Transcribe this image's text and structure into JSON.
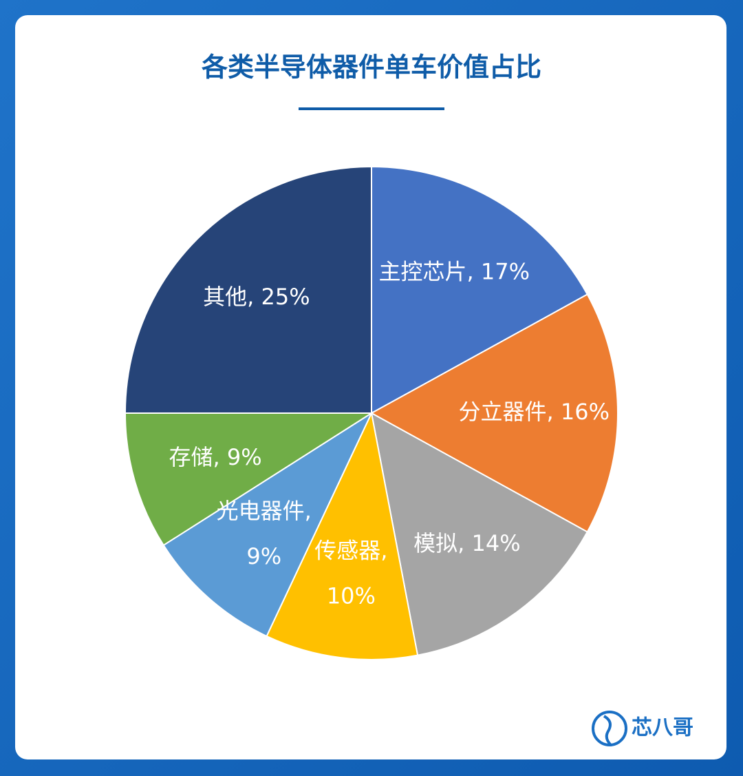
{
  "chart_data": {
    "type": "pie",
    "title": "各类半导体器件单车价值占比",
    "categories": [
      "主控芯片",
      "分立器件",
      "模拟",
      "传感器",
      "光电器件",
      "存储",
      "其他"
    ],
    "values": [
      17,
      16,
      14,
      10,
      9,
      9,
      25
    ],
    "value_labels": [
      [
        "主控芯片, 17%"
      ],
      [
        "分立器件, 16%"
      ],
      [
        "模拟, 14%"
      ],
      [
        "传感器,",
        "10%"
      ],
      [
        "光电器件,",
        "9%"
      ],
      [
        "存储, 9%"
      ],
      [
        "其他, 25%"
      ]
    ],
    "colors": [
      "#4472c4",
      "#ed7d31",
      "#a5a5a5",
      "#ffc000",
      "#5b9bd5",
      "#70ad47",
      "#264478"
    ],
    "brand": "芯八哥"
  }
}
